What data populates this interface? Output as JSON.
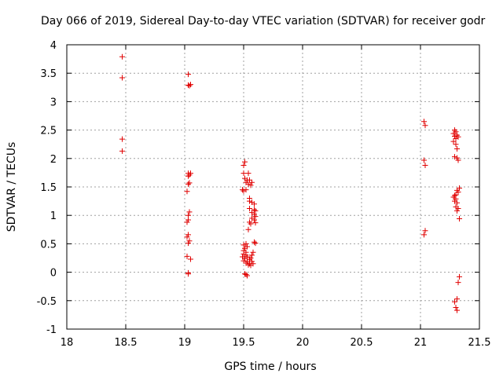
{
  "chart_data": {
    "type": "scatter",
    "title": "Day 066 of 2019, Sidereal Day-to-day VTEC variation (SDTVAR) for receiver godr",
    "xlabel": "GPS time / hours",
    "ylabel": "SDTVAR / TECUs",
    "xlim": [
      18,
      21.5
    ],
    "ylim": [
      -1,
      4
    ],
    "xticks": [
      "18",
      "18.5",
      "19",
      "19.5",
      "20",
      "20.5",
      "21",
      "21.5"
    ],
    "yticks": [
      "-1",
      "-0.5",
      "0",
      "0.5",
      "1",
      "1.5",
      "2",
      "2.5",
      "3",
      "3.5",
      "4"
    ],
    "grid": true,
    "marker": "+",
    "color": "#e00000",
    "series": [
      {
        "name": "SDTVAR",
        "points": [
          [
            18.47,
            3.79
          ],
          [
            18.47,
            3.42
          ],
          [
            18.47,
            2.34
          ],
          [
            18.47,
            2.13
          ],
          [
            19.03,
            3.48
          ],
          [
            19.03,
            3.29
          ],
          [
            19.05,
            3.3
          ],
          [
            19.04,
            3.28
          ],
          [
            19.03,
            1.74
          ],
          [
            19.05,
            1.74
          ],
          [
            19.04,
            1.71
          ],
          [
            19.03,
            1.69
          ],
          [
            19.04,
            1.57
          ],
          [
            19.03,
            1.55
          ],
          [
            19.02,
            1.42
          ],
          [
            19.04,
            1.06
          ],
          [
            19.03,
            1.0
          ],
          [
            19.03,
            0.92
          ],
          [
            19.02,
            0.88
          ],
          [
            19.03,
            0.66
          ],
          [
            19.02,
            0.62
          ],
          [
            19.04,
            0.55
          ],
          [
            19.03,
            0.51
          ],
          [
            19.02,
            0.28
          ],
          [
            19.05,
            0.23
          ],
          [
            19.03,
            -0.01
          ],
          [
            19.03,
            -0.03
          ],
          [
            19.51,
            1.94
          ],
          [
            19.5,
            1.88
          ],
          [
            19.5,
            1.74
          ],
          [
            19.54,
            1.74
          ],
          [
            19.51,
            1.65
          ],
          [
            19.53,
            1.62
          ],
          [
            19.55,
            1.62
          ],
          [
            19.52,
            1.58
          ],
          [
            19.57,
            1.58
          ],
          [
            19.54,
            1.55
          ],
          [
            19.56,
            1.53
          ],
          [
            19.49,
            1.45
          ],
          [
            19.5,
            1.43
          ],
          [
            19.52,
            1.45
          ],
          [
            19.55,
            1.3
          ],
          [
            19.55,
            1.25
          ],
          [
            19.57,
            1.23
          ],
          [
            19.59,
            1.2
          ],
          [
            19.55,
            1.12
          ],
          [
            19.59,
            1.1
          ],
          [
            19.6,
            1.08
          ],
          [
            19.57,
            1.05
          ],
          [
            19.59,
            1.02
          ],
          [
            19.6,
            0.98
          ],
          [
            19.57,
            0.95
          ],
          [
            19.59,
            0.92
          ],
          [
            19.55,
            0.88
          ],
          [
            19.56,
            0.85
          ],
          [
            19.6,
            0.87
          ],
          [
            19.54,
            0.75
          ],
          [
            19.59,
            0.53
          ],
          [
            19.6,
            0.51
          ],
          [
            19.52,
            0.5
          ],
          [
            19.5,
            0.48
          ],
          [
            19.53,
            0.45
          ],
          [
            19.51,
            0.42
          ],
          [
            19.5,
            0.38
          ],
          [
            19.52,
            0.35
          ],
          [
            19.58,
            0.35
          ],
          [
            19.5,
            0.32
          ],
          [
            19.52,
            0.3
          ],
          [
            19.57,
            0.3
          ],
          [
            19.49,
            0.27
          ],
          [
            19.53,
            0.27
          ],
          [
            19.56,
            0.25
          ],
          [
            19.51,
            0.24
          ],
          [
            19.55,
            0.22
          ],
          [
            19.5,
            0.2
          ],
          [
            19.53,
            0.19
          ],
          [
            19.57,
            0.19
          ],
          [
            19.52,
            0.16
          ],
          [
            19.55,
            0.15
          ],
          [
            19.58,
            0.15
          ],
          [
            19.54,
            0.13
          ],
          [
            19.56,
            0.12
          ],
          [
            19.51,
            -0.03
          ],
          [
            19.52,
            -0.04
          ],
          [
            19.53,
            -0.06
          ],
          [
            21.03,
            2.65
          ],
          [
            21.04,
            2.58
          ],
          [
            21.03,
            1.97
          ],
          [
            21.04,
            1.88
          ],
          [
            21.04,
            0.73
          ],
          [
            21.03,
            0.66
          ],
          [
            21.29,
            2.5
          ],
          [
            21.3,
            2.47
          ],
          [
            21.28,
            2.44
          ],
          [
            21.31,
            2.41
          ],
          [
            21.29,
            2.39
          ],
          [
            21.32,
            2.38
          ],
          [
            21.3,
            2.35
          ],
          [
            21.28,
            2.3
          ],
          [
            21.3,
            2.25
          ],
          [
            21.31,
            2.17
          ],
          [
            21.29,
            2.03
          ],
          [
            21.31,
            2.01
          ],
          [
            21.32,
            1.97
          ],
          [
            21.33,
            1.48
          ],
          [
            21.31,
            1.44
          ],
          [
            21.32,
            1.41
          ],
          [
            21.3,
            1.36
          ],
          [
            21.29,
            1.35
          ],
          [
            21.28,
            1.32
          ],
          [
            21.3,
            1.29
          ],
          [
            21.29,
            1.25
          ],
          [
            21.31,
            1.22
          ],
          [
            21.3,
            1.15
          ],
          [
            21.32,
            1.12
          ],
          [
            21.31,
            1.08
          ],
          [
            21.33,
            0.94
          ],
          [
            21.33,
            -0.08
          ],
          [
            21.32,
            -0.18
          ],
          [
            21.31,
            -0.47
          ],
          [
            21.29,
            -0.52
          ],
          [
            21.3,
            -0.62
          ],
          [
            21.31,
            -0.67
          ]
        ]
      }
    ]
  }
}
